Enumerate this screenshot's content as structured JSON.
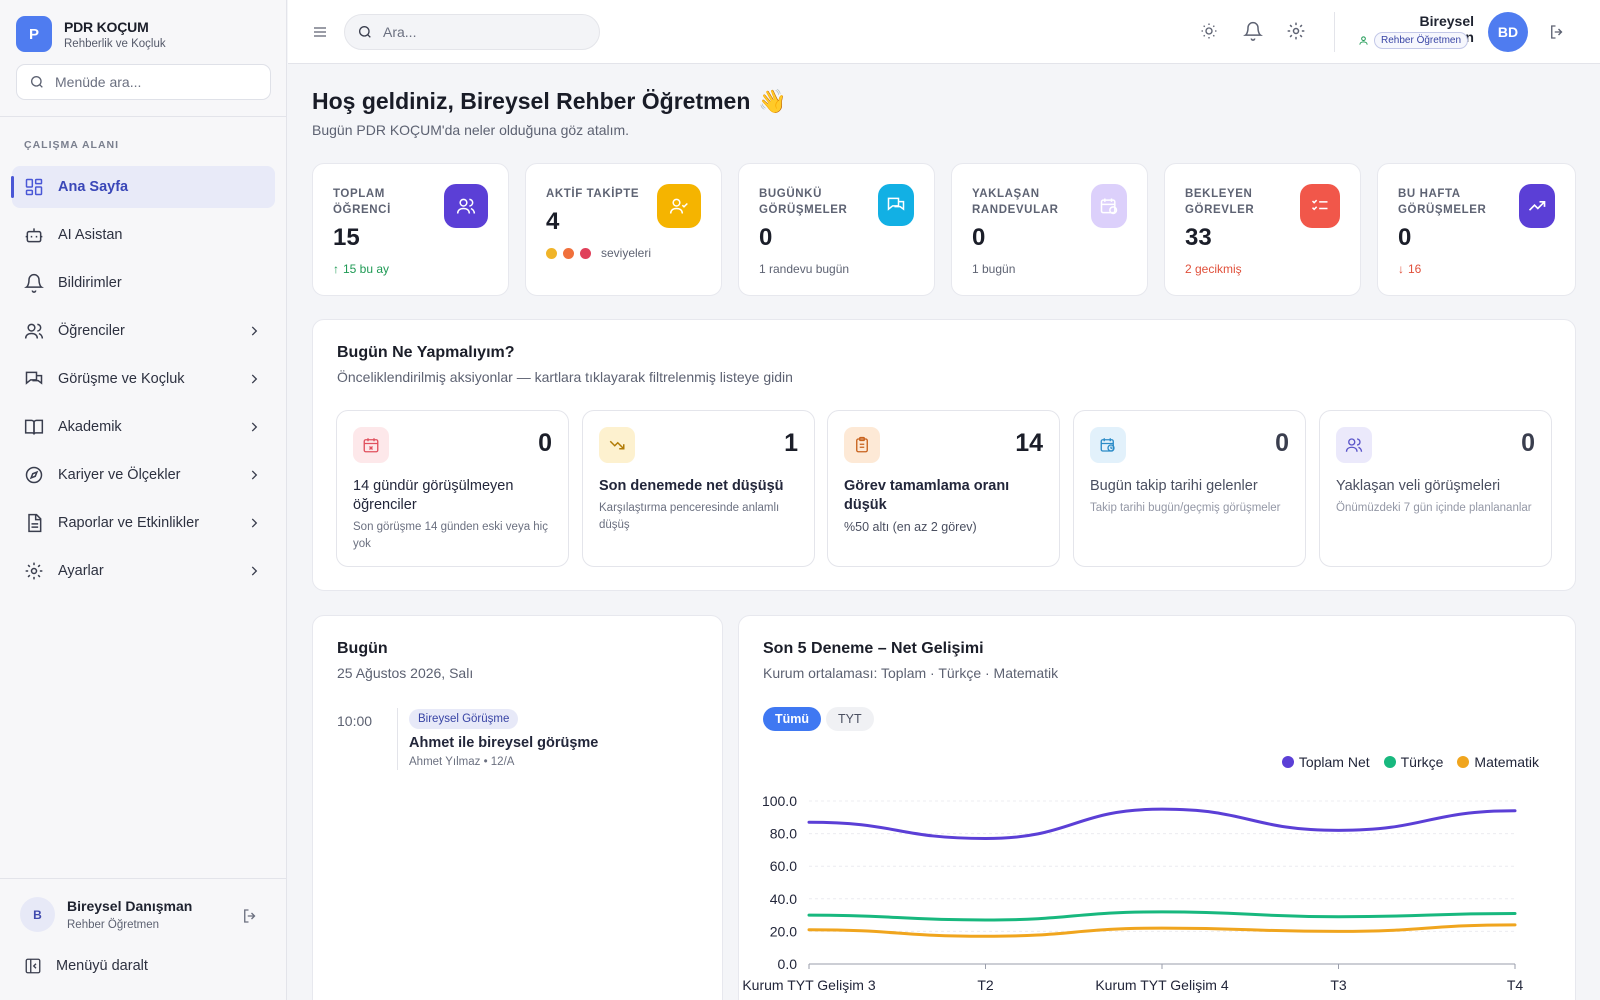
{
  "brand": {
    "logo_letter": "P",
    "title": "PDR KOÇUM",
    "subtitle": "Rehberlik ve Koçluk"
  },
  "sidebar": {
    "search_placeholder": "Menüde ara...",
    "section_label": "ÇALIŞMA ALANI",
    "items": [
      {
        "label": "Ana Sayfa",
        "icon": "dashboard-icon",
        "active": true
      },
      {
        "label": "AI Asistan",
        "icon": "robot-icon"
      },
      {
        "label": "Bildirimler",
        "icon": "bell-icon"
      },
      {
        "label": "Öğrenciler",
        "icon": "users-icon",
        "has_children": true
      },
      {
        "label": "Görüşme ve Koçluk",
        "icon": "chat-icon",
        "has_children": true
      },
      {
        "label": "Akademik",
        "icon": "book-icon",
        "has_children": true
      },
      {
        "label": "Kariyer ve Ölçekler",
        "icon": "compass-icon",
        "has_children": true
      },
      {
        "label": "Raporlar ve Etkinlikler",
        "icon": "report-icon",
        "has_children": true
      },
      {
        "label": "Ayarlar",
        "icon": "gear-icon",
        "has_children": true
      }
    ],
    "user": {
      "initial": "B",
      "name": "Bireysel Danışman",
      "role": "Rehber Öğretmen"
    },
    "collapse_label": "Menüyü daralt"
  },
  "header": {
    "search_placeholder": "Ara...",
    "user_name": "Bireysel Danışman",
    "user_role": "Rehber Öğretmen",
    "avatar_initials": "BD"
  },
  "welcome": {
    "title": "Hoş geldiniz, Bireysel Rehber Öğretmen",
    "emoji": "👋",
    "subtitle": "Bugün PDR KOÇUM'da neler olduğuna göz atalım."
  },
  "stats": [
    {
      "label": "TOPLAM ÖĞRENCİ",
      "value": "15",
      "foot": "15 bu ay",
      "foot_arrow": "↑",
      "color": "#5b3fd6",
      "icon": "users-icon"
    },
    {
      "label": "AKTİF TAKİPTE",
      "value": "4",
      "foot": "seviyeleri",
      "color": "#f5b400",
      "icon": "user-check-icon",
      "dot_colors": [
        "#f0b429",
        "#f0703c",
        "#e0405a"
      ]
    },
    {
      "label": "BUGÜNKÜ GÖRÜŞMELER",
      "value": "0",
      "foot": "1 randevu bugün",
      "color": "#12b0e4",
      "icon": "chat-icon"
    },
    {
      "label": "YAKLAŞAN RANDEVULAR",
      "value": "0",
      "foot": "1 bugün",
      "color": "#d9cdfa",
      "icon": "calendar-clock-icon"
    },
    {
      "label": "BEKLEYEN GÖREVLER",
      "value": "33",
      "foot": "2 gecikmiş",
      "color": "#f1574a",
      "icon": "task-list-icon"
    },
    {
      "label": "BU HAFTA GÖRÜŞMELER",
      "value": "0",
      "foot": "16",
      "foot_arrow": "↓",
      "color": "#5b3fd6",
      "icon": "trend-up-icon"
    }
  ],
  "todo": {
    "title": "Bugün Ne Yapmalıyım?",
    "subtitle": "Önceliklendirilmiş aksiyonlar — kartlara tıklayarak filtrelenmiş listeye gidin",
    "cards": [
      {
        "count": "0",
        "title": "14 gündür görüşülmeyen öğrenciler",
        "desc": "Son görüşme 14 günden eski veya hiç yok",
        "icon": "calendar-x-icon",
        "bg": "#fde8ea",
        "fg": "#e0505e"
      },
      {
        "count": "1",
        "title": "Son denemede net düşüşü",
        "desc": "Karşılaştırma penceresinde anlamlı düşüş",
        "icon": "trend-down-icon",
        "bg": "#fdf1cf",
        "fg": "#b17b06"
      },
      {
        "count": "14",
        "title": "Görev tamamlama oranı düşük",
        "desc": "%50 altı (en az 2 görev)",
        "icon": "clipboard-icon",
        "bg": "#fde9d6",
        "fg": "#c8621d"
      },
      {
        "count": "0",
        "title": "Bugün takip tarihi gelenler",
        "desc": "Takip tarihi bugün/geçmiş görüşmeler",
        "icon": "calendar-clock-icon",
        "bg": "#e2f1fb",
        "fg": "#2b8bc7"
      },
      {
        "count": "0",
        "title": "Yaklaşan veli görüşmeleri",
        "desc": "Önümüzdeki 7 gün içinde planlananlar",
        "icon": "users-icon",
        "bg": "#ebe9fb",
        "fg": "#5b55c9"
      }
    ]
  },
  "today": {
    "title": "Bugün",
    "date": "25 Ağustos 2026, Salı",
    "event": {
      "time": "10:00",
      "tag": "Bireysel Görüşme",
      "title": "Ahmet ile bireysel görüşme",
      "meta": "Ahmet Yılmaz • 12/A"
    }
  },
  "progress": {
    "title": "Son 5 Deneme – Net Gelişimi",
    "subtitle": "Kurum ortalaması: Toplam · Türkçe · Matematik",
    "tabs": [
      "Tümü",
      "TYT"
    ]
  },
  "chart_data": {
    "type": "line",
    "categories": [
      "Kurum TYT Gelişim 3",
      "T2",
      "Kurum TYT Gelişim 4",
      "T3",
      "T4"
    ],
    "ylim": [
      0,
      100
    ],
    "yticks": [
      "100.0",
      "80.0",
      "60.0",
      "40.0",
      "20.0",
      "0.0"
    ],
    "grid": true,
    "legend_position": "top-right",
    "series": [
      {
        "name": "Toplam Net",
        "color": "#5b3fd6",
        "values": [
          87,
          77,
          95,
          82,
          94
        ]
      },
      {
        "name": "Türkçe",
        "color": "#18b87e",
        "values": [
          30,
          27,
          32,
          29,
          31
        ]
      },
      {
        "name": "Matematik",
        "color": "#f0a51e",
        "values": [
          21,
          17,
          22,
          20,
          24
        ]
      }
    ]
  }
}
